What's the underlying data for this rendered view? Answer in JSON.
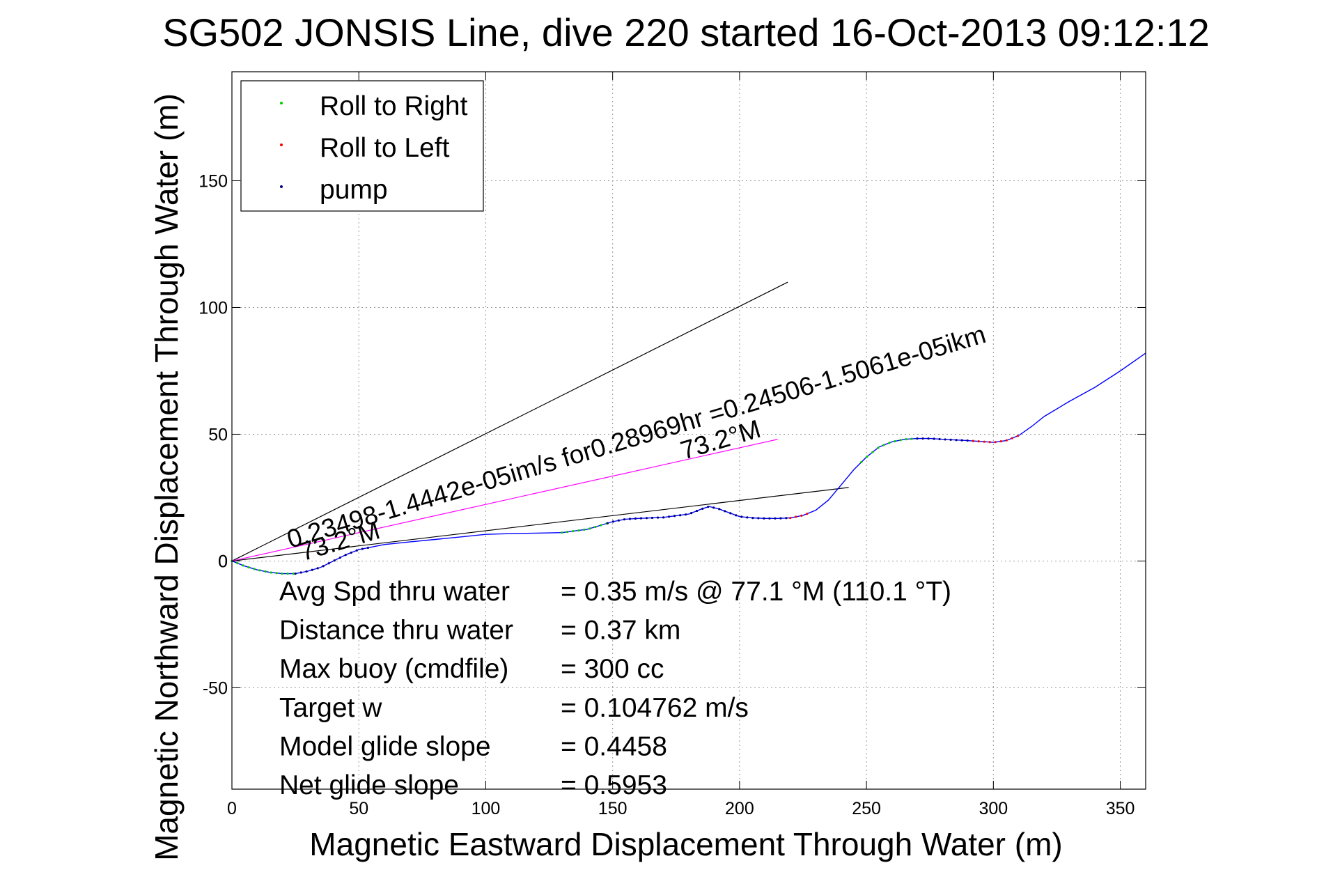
{
  "chart_data": {
    "type": "line",
    "title": "SG502 JONSIS Line, dive 220 started 16-Oct-2013 09:12:12",
    "xlabel": "Magnetic Eastward Displacement Through Water (m)",
    "ylabel": "Magnetic Northward Displacement Through Water (m)",
    "xlim": [
      0,
      360
    ],
    "ylim": [
      -90,
      193
    ],
    "grid": true,
    "xticks": [
      "0",
      "50",
      "100",
      "150",
      "200",
      "250",
      "300",
      "350"
    ],
    "yticks": [
      "-50",
      "0",
      "50",
      "100",
      "150"
    ],
    "legend": {
      "placement": "top-left",
      "entries": [
        {
          "label": "Roll to Right",
          "color": "#00cc00"
        },
        {
          "label": "Roll to Left",
          "color": "#ff0000"
        },
        {
          "label": "pump",
          "color": "#000080"
        }
      ]
    },
    "colors": {
      "track": "#0000ff",
      "fit_line": "#ff00ff",
      "reference_lines": "#000000"
    },
    "series": [
      {
        "name": "",
        "x": [
          0,
          5,
          10,
          15,
          20,
          25,
          30,
          35,
          40,
          45,
          50,
          60,
          70,
          80,
          90,
          100,
          110,
          120,
          130,
          140,
          145,
          150,
          155,
          160,
          170,
          180,
          185,
          188,
          192,
          196,
          200,
          205,
          210,
          215,
          220,
          225,
          230,
          235,
          240,
          245,
          250,
          255,
          260,
          265,
          270,
          275,
          280,
          290,
          300,
          305,
          310,
          315,
          320,
          330,
          340,
          350,
          360
        ],
        "y": [
          0,
          -2,
          -3.5,
          -4.5,
          -5,
          -5,
          -4,
          -2.5,
          0,
          2.5,
          4.5,
          6.5,
          7.5,
          8.5,
          9.5,
          10.5,
          10.8,
          11,
          11.2,
          12.5,
          14,
          15.5,
          16.5,
          16.8,
          17.2,
          18.5,
          20.5,
          21.5,
          20.5,
          19,
          17.5,
          17,
          16.8,
          16.8,
          17,
          18,
          20,
          24,
          30,
          36,
          41,
          45,
          47,
          48,
          48.3,
          48.3,
          48,
          47.5,
          46.8,
          47.5,
          49.5,
          53,
          57,
          63,
          68.5,
          75,
          82
        ]
      }
    ],
    "segments": [
      {
        "from": [
          0,
          0
        ],
        "to": [
          219,
          110
        ]
      },
      {
        "from": [
          0,
          0
        ],
        "to": [
          243,
          29
        ]
      },
      {
        "from": [
          0,
          0
        ],
        "to": [
          215,
          48
        ]
      }
    ],
    "annotations": [
      {
        "text": "0.23498-1.4442e-05im/s for0.28969hr =0.24506-1.5061e-05ikm",
        "x": 23,
        "y": 5,
        "angle": -16.5
      },
      {
        "text": "73.2°M",
        "x": 28,
        "y": 0,
        "angle": -16.5
      },
      {
        "text": "73.2°M",
        "x": 178,
        "y": 40,
        "angle": -16.5
      }
    ],
    "stats": [
      {
        "label": "Avg Spd thru water",
        "value": "=  0.35 m/s @  77.1 °M (110.1 °T)"
      },
      {
        "label": "Distance thru water",
        "value": "=  0.37 km"
      },
      {
        "label": "Max buoy (cmdfile)",
        "value": "= 300 cc"
      },
      {
        "label": "Target w",
        "value": "= 0.104762 m/s"
      },
      {
        "label": "Model glide slope",
        "value": "= 0.4458"
      },
      {
        "label": "Net glide slope",
        "value": "= 0.5953"
      }
    ],
    "marker_segments": [
      {
        "class": "Roll to Right",
        "x_range": [
          0,
          25
        ]
      },
      {
        "class": "pump",
        "x_range": [
          25,
          55
        ]
      },
      {
        "class": "Roll to Right",
        "x_range": [
          130,
          148
        ]
      },
      {
        "class": "pump",
        "x_range": [
          148,
          220
        ]
      },
      {
        "class": "Roll to Left",
        "x_range": [
          220,
          228
        ]
      },
      {
        "class": "Roll to Right",
        "x_range": [
          248,
          270
        ]
      },
      {
        "class": "pump",
        "x_range": [
          270,
          292
        ]
      },
      {
        "class": "Roll to Left",
        "x_range": [
          292,
          310
        ]
      }
    ]
  }
}
